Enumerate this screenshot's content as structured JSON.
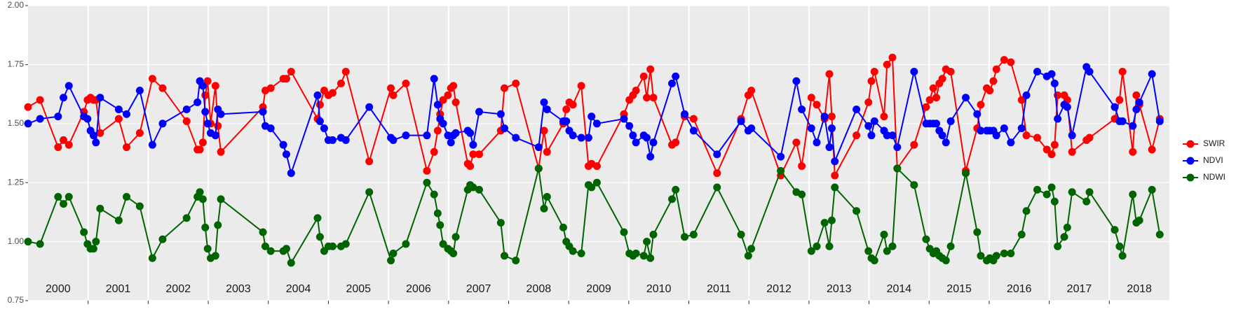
{
  "chart_data": {
    "type": "line",
    "x": [
      2000.0,
      2000.2,
      2000.5,
      2000.59,
      2000.68,
      2000.93,
      2000.99,
      2001.04,
      2001.09,
      2001.13,
      2001.2,
      2001.51,
      2001.64,
      2001.86,
      2002.07,
      2002.24,
      2002.64,
      2002.82,
      2002.86,
      2002.91,
      2002.95,
      2002.99,
      2003.04,
      2003.12,
      2003.16,
      2003.21,
      2003.91,
      2003.95,
      2004.04,
      2004.25,
      2004.3,
      2004.38,
      2004.82,
      2004.86,
      2004.93,
      2005.0,
      2005.07,
      2005.21,
      2005.29,
      2005.68,
      2006.04,
      2006.08,
      2006.29,
      2006.64,
      2006.76,
      2006.82,
      2006.86,
      2006.91,
      2006.99,
      2007.04,
      2007.08,
      2007.12,
      2007.32,
      2007.36,
      2007.41,
      2007.51,
      2007.87,
      2007.93,
      2008.12,
      2008.5,
      2008.59,
      2008.64,
      2008.91,
      2008.96,
      2009.01,
      2009.07,
      2009.21,
      2009.33,
      2009.38,
      2009.47,
      2009.92,
      2010.01,
      2010.07,
      2010.12,
      2010.25,
      2010.3,
      2010.36,
      2010.41,
      2010.72,
      2010.78,
      2010.93,
      2011.08,
      2011.47,
      2011.87,
      2011.99,
      2012.04,
      2012.53,
      2012.79,
      2012.88,
      2013.04,
      2013.13,
      2013.26,
      2013.34,
      2013.38,
      2013.43,
      2013.79,
      2013.99,
      2014.04,
      2014.09,
      2014.25,
      2014.3,
      2014.39,
      2014.47,
      2014.75,
      2014.95,
      2015.01,
      2015.07,
      2015.12,
      2015.17,
      2015.22,
      2015.28,
      2015.36,
      2015.61,
      2015.8,
      2015.86,
      2015.96,
      2016.01,
      2016.07,
      2016.12,
      2016.25,
      2016.36,
      2016.54,
      2016.62,
      2016.8,
      2016.96,
      2017.04,
      2017.09,
      2017.14,
      2017.25,
      2017.3,
      2017.38,
      2017.62,
      2017.67,
      2018.09,
      2018.17,
      2018.22,
      2018.39,
      2018.45,
      2018.5,
      2018.71,
      2018.84
    ],
    "series": [
      {
        "name": "SWIR",
        "color": "#ff0000",
        "values": [
          1.57,
          1.6,
          1.4,
          1.43,
          1.41,
          1.55,
          1.6,
          1.61,
          1.6,
          1.6,
          1.46,
          1.52,
          1.4,
          1.46,
          1.69,
          1.65,
          1.51,
          1.39,
          1.39,
          1.42,
          1.62,
          1.68,
          1.5,
          1.66,
          1.49,
          1.38,
          1.57,
          1.64,
          1.65,
          1.69,
          1.69,
          1.72,
          1.52,
          1.58,
          1.64,
          1.62,
          1.63,
          1.67,
          1.72,
          1.34,
          1.65,
          1.62,
          1.67,
          1.3,
          1.38,
          1.47,
          1.54,
          1.6,
          1.62,
          1.65,
          1.66,
          1.59,
          1.33,
          1.32,
          1.37,
          1.37,
          1.47,
          1.65,
          1.67,
          1.31,
          1.47,
          1.38,
          1.5,
          1.56,
          1.59,
          1.58,
          1.66,
          1.32,
          1.33,
          1.32,
          1.54,
          1.6,
          1.62,
          1.64,
          1.7,
          1.61,
          1.73,
          1.61,
          1.41,
          1.42,
          1.53,
          1.52,
          1.29,
          1.52,
          1.62,
          1.64,
          1.28,
          1.42,
          1.32,
          1.61,
          1.58,
          1.52,
          1.71,
          1.53,
          1.28,
          1.45,
          1.59,
          1.68,
          1.72,
          1.53,
          1.75,
          1.78,
          1.31,
          1.41,
          1.57,
          1.6,
          1.65,
          1.61,
          1.67,
          1.69,
          1.73,
          1.72,
          1.3,
          1.48,
          1.58,
          1.65,
          1.64,
          1.68,
          1.73,
          1.77,
          1.76,
          1.6,
          1.45,
          1.44,
          1.39,
          1.37,
          1.41,
          1.62,
          1.62,
          1.6,
          1.38,
          1.43,
          1.44,
          1.52,
          1.6,
          1.72,
          1.38,
          1.62,
          1.58,
          1.39,
          1.52
        ]
      },
      {
        "name": "NDVI",
        "color": "#0000ff",
        "values": [
          1.5,
          1.52,
          1.53,
          1.61,
          1.66,
          1.53,
          1.52,
          1.47,
          1.45,
          1.42,
          1.61,
          1.56,
          1.54,
          1.64,
          1.41,
          1.5,
          1.56,
          1.59,
          1.68,
          1.66,
          1.55,
          1.5,
          1.46,
          1.45,
          1.56,
          1.54,
          1.55,
          1.49,
          1.48,
          1.41,
          1.37,
          1.29,
          1.62,
          1.51,
          1.48,
          1.43,
          1.43,
          1.44,
          1.43,
          1.57,
          1.44,
          1.43,
          1.45,
          1.45,
          1.69,
          1.58,
          1.52,
          1.5,
          1.45,
          1.42,
          1.45,
          1.46,
          1.47,
          1.46,
          1.41,
          1.55,
          1.54,
          1.48,
          1.44,
          1.4,
          1.59,
          1.56,
          1.51,
          1.51,
          1.47,
          1.45,
          1.44,
          1.44,
          1.53,
          1.5,
          1.52,
          1.49,
          1.45,
          1.42,
          1.45,
          1.44,
          1.36,
          1.42,
          1.67,
          1.7,
          1.54,
          1.47,
          1.37,
          1.51,
          1.47,
          1.48,
          1.36,
          1.68,
          1.56,
          1.48,
          1.42,
          1.53,
          1.4,
          1.48,
          1.34,
          1.56,
          1.49,
          1.45,
          1.51,
          1.47,
          1.45,
          1.45,
          1.4,
          1.72,
          1.5,
          1.5,
          1.5,
          1.5,
          1.47,
          1.45,
          1.42,
          1.51,
          1.61,
          1.54,
          1.47,
          1.47,
          1.47,
          1.47,
          1.45,
          1.48,
          1.42,
          1.48,
          1.62,
          1.72,
          1.7,
          1.71,
          1.67,
          1.52,
          1.58,
          1.57,
          1.45,
          1.74,
          1.72,
          1.57,
          1.51,
          1.51,
          1.49,
          1.56,
          1.59,
          1.71,
          1.51
        ]
      },
      {
        "name": "NDWI",
        "color": "#006400",
        "values": [
          1.0,
          0.99,
          1.19,
          1.16,
          1.19,
          1.04,
          0.99,
          0.97,
          0.97,
          1.0,
          1.14,
          1.09,
          1.19,
          1.15,
          0.93,
          1.01,
          1.1,
          1.19,
          1.21,
          1.18,
          1.06,
          0.97,
          0.93,
          0.94,
          1.07,
          1.18,
          1.04,
          0.98,
          0.96,
          0.96,
          0.97,
          0.91,
          1.1,
          1.02,
          0.96,
          0.98,
          0.98,
          0.98,
          0.99,
          1.21,
          0.92,
          0.95,
          0.99,
          1.25,
          1.2,
          1.12,
          1.07,
          0.99,
          0.97,
          0.96,
          0.95,
          1.02,
          1.22,
          1.24,
          1.23,
          1.22,
          1.08,
          0.94,
          0.92,
          1.31,
          1.14,
          1.19,
          1.06,
          1.0,
          0.98,
          0.96,
          0.95,
          1.24,
          1.23,
          1.25,
          1.04,
          0.95,
          0.94,
          0.95,
          0.94,
          1.0,
          0.93,
          1.03,
          1.18,
          1.22,
          1.02,
          1.03,
          1.23,
          1.03,
          0.94,
          0.97,
          1.3,
          1.21,
          1.2,
          0.96,
          0.98,
          1.08,
          0.98,
          1.09,
          1.23,
          1.13,
          0.96,
          0.93,
          0.92,
          1.03,
          0.96,
          0.98,
          1.31,
          1.24,
          1.01,
          0.97,
          0.95,
          0.96,
          0.94,
          0.93,
          0.92,
          0.98,
          1.29,
          1.04,
          0.94,
          0.92,
          0.93,
          0.92,
          0.94,
          0.95,
          0.95,
          1.03,
          1.13,
          1.22,
          1.2,
          1.23,
          1.17,
          0.98,
          1.02,
          1.06,
          1.21,
          1.17,
          1.21,
          1.05,
          0.98,
          0.94,
          1.2,
          1.08,
          1.09,
          1.22,
          1.03
        ]
      }
    ],
    "xlim": [
      2000,
      2019
    ],
    "xticks": [
      2001,
      2002,
      2003,
      2004,
      2005,
      2006,
      2007,
      2008,
      2009,
      2010,
      2011,
      2012,
      2013,
      2014,
      2015,
      2016,
      2017,
      2018
    ],
    "year_labels": [
      "2000",
      "2001",
      "2002",
      "2003",
      "2004",
      "2005",
      "2006",
      "2007",
      "2008",
      "2009",
      "2010",
      "2011",
      "2012",
      "2013",
      "2014",
      "2015",
      "2016",
      "2017",
      "2018"
    ],
    "ylim": [
      0.75,
      2.0
    ],
    "yticks": [
      {
        "value": 0.75,
        "label": "0.75"
      },
      {
        "value": 1.0,
        "label": "1.00"
      },
      {
        "value": 1.25,
        "label": "1.25"
      },
      {
        "value": 1.5,
        "label": "1.50"
      },
      {
        "value": 1.75,
        "label": "1.75"
      },
      {
        "value": 2.0,
        "label": "2.00"
      }
    ],
    "grid": true,
    "legend": "right"
  }
}
